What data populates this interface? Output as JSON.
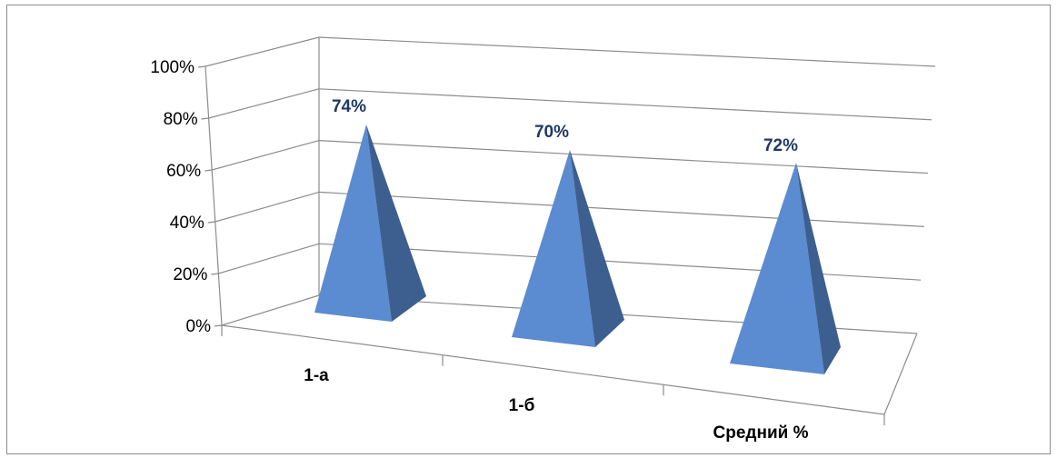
{
  "chart_data": {
    "type": "bar",
    "style": "3d-pyramid",
    "categories": [
      "1-а",
      "1-б",
      "Средний %"
    ],
    "values": [
      74,
      70,
      72
    ],
    "data_labels": [
      "74%",
      "70%",
      "72%"
    ],
    "ylim": [
      0,
      100
    ],
    "yticks": [
      0,
      20,
      40,
      60,
      80,
      100
    ],
    "ytick_labels": [
      "0%",
      "20%",
      "40%",
      "60%",
      "80%",
      "100%"
    ],
    "grid": true,
    "legend": "none",
    "title": "",
    "xlabel": "",
    "ylabel": "",
    "colors": {
      "front": "#5b8bd0",
      "side": "#3d5f8f",
      "grid": "#8c8c8c",
      "label": "#1f3864"
    }
  }
}
